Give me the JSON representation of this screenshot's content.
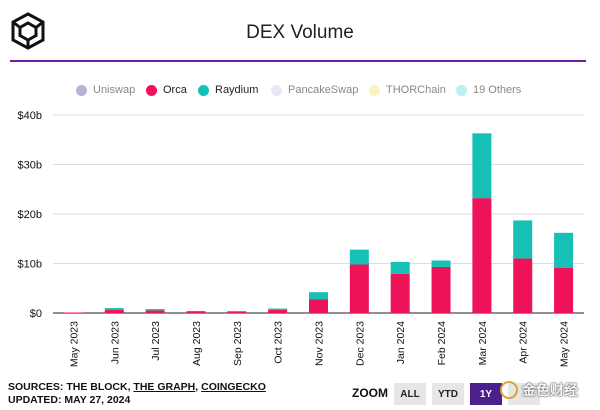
{
  "header": {
    "title": "DEX Volume"
  },
  "legend": [
    {
      "label": "Uniswap",
      "color": "#b9b3d2",
      "active": false
    },
    {
      "label": "Orca",
      "color": "#ee1359",
      "active": true
    },
    {
      "label": "Raydium",
      "color": "#16c0b4",
      "active": true
    },
    {
      "label": "PancakeSwap",
      "color": "#e9e6f7",
      "active": false
    },
    {
      "label": "THORChain",
      "color": "#fbf3c1",
      "active": false
    },
    {
      "label": "19 Others",
      "color": "#bdeef1",
      "active": false
    }
  ],
  "footer": {
    "sources_prefix": "SOURCES: THE BLOCK, ",
    "sources_link1": "THE GRAPH",
    "sources_sep": ", ",
    "sources_link2": "COINGECKO",
    "updated": "UPDATED: MAY 27, 2024"
  },
  "zoom": {
    "label": "ZOOM",
    "buttons": [
      {
        "label": "ALL",
        "active": false
      },
      {
        "label": "YTD",
        "active": false
      },
      {
        "label": "1Y",
        "active": true
      },
      {
        "label": "",
        "active": false
      }
    ]
  },
  "watermark": {
    "text": "金色财经"
  },
  "chart_data": {
    "type": "bar",
    "stacked": true,
    "title": "DEX Volume",
    "xlabel": "",
    "ylabel": "",
    "ylim": [
      0,
      40
    ],
    "yticks": [
      0,
      10,
      20,
      30,
      40
    ],
    "ytick_labels": [
      "$0",
      "$10b",
      "$20b",
      "$30b",
      "$40b"
    ],
    "grid": true,
    "legend_position": "top",
    "categories": [
      "May 2023",
      "Jun 2023",
      "Jul 2023",
      "Aug 2023",
      "Sep 2023",
      "Oct 2023",
      "Nov 2023",
      "Dec 2023",
      "Jan 2024",
      "Feb 2024",
      "Mar 2024",
      "Apr 2024",
      "May 2024"
    ],
    "series": [
      {
        "name": "Orca",
        "color": "#ee1359",
        "values": [
          0.1,
          0.6,
          0.5,
          0.3,
          0.2,
          0.6,
          2.8,
          9.8,
          7.9,
          9.3,
          23.2,
          11.0,
          9.1
        ]
      },
      {
        "name": "Raydium",
        "color": "#16c0b4",
        "values": [
          0.0,
          0.4,
          0.3,
          0.1,
          0.2,
          0.3,
          1.4,
          3.0,
          2.4,
          1.3,
          13.1,
          7.7,
          7.1
        ]
      }
    ]
  }
}
